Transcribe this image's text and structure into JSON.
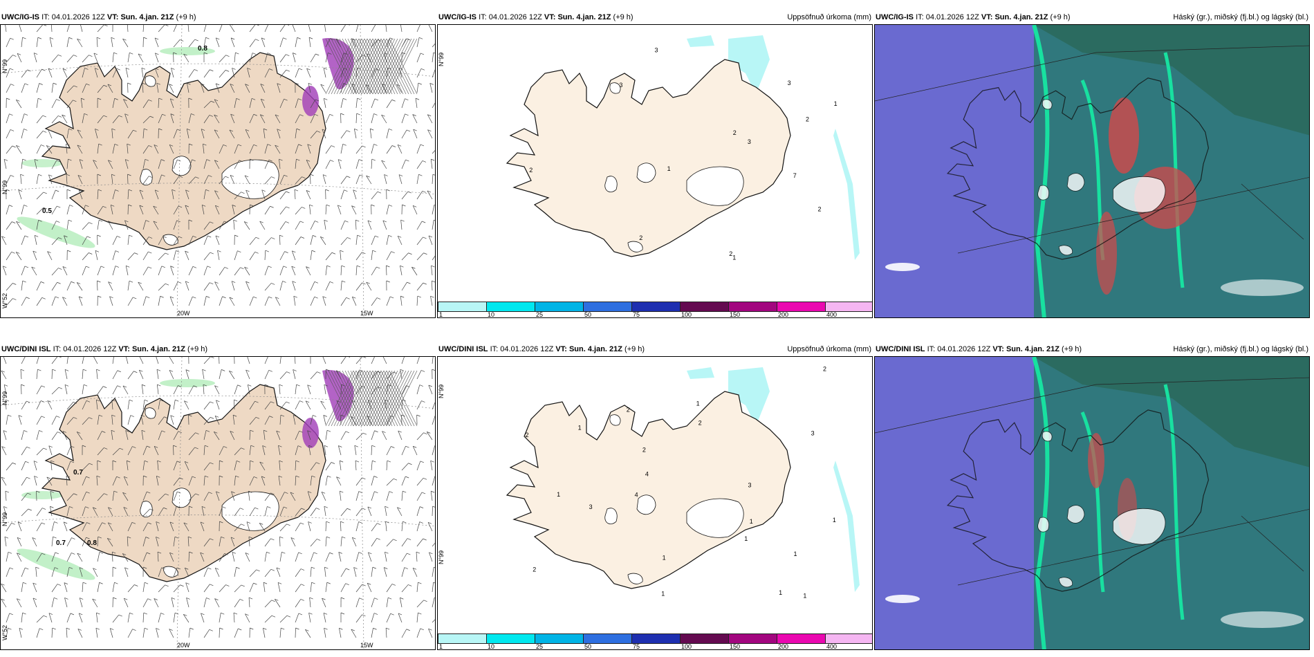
{
  "panels": [
    {
      "model": "UWC/IG-IS",
      "it_label": "IT:",
      "it_value": "04.01.2026 12Z",
      "vt_label": "VT:",
      "vt_value": "Sun. 4.jan. 21Z",
      "lead": "(+9 h)",
      "right_title": "",
      "labels": [
        "0.8",
        "0.5"
      ],
      "lon_labels": [
        "20W",
        "15W"
      ],
      "lat_labels": [
        "N°99",
        "N°99",
        "W°52"
      ]
    },
    {
      "model": "UWC/IG-IS",
      "it_label": "IT:",
      "it_value": "04.01.2026 12Z",
      "vt_label": "VT:",
      "vt_value": "Sun. 4.jan. 21Z",
      "lead": "(+9 h)",
      "right_title": "Uppsöfnuð úrkoma (mm)",
      "labels": [
        "2",
        "7",
        "3",
        "2",
        "3",
        "2",
        "1",
        "2",
        "1",
        "2",
        "3",
        "2",
        "3",
        "1"
      ],
      "lat_labels": [
        "N°99"
      ]
    },
    {
      "model": "UWC/IG-IS",
      "it_label": "IT:",
      "it_value": "04.01.2026 12Z",
      "vt_label": "VT:",
      "vt_value": "Sun. 4.jan. 21Z",
      "lead": "(+9 h)",
      "right_title": "Háský (gr.), miðský (fj.bl.) og lágský (bl.)"
    },
    {
      "model": "UWC/DINI ISL",
      "it_label": "IT:",
      "it_value": "04.01.2026 12Z",
      "vt_label": "VT:",
      "vt_value": "Sun. 4.jan. 21Z",
      "lead": "(+9 h)",
      "right_title": "",
      "labels": [
        "0.7",
        "0.7",
        "0.8"
      ],
      "lon_labels": [
        "20W",
        "15W"
      ],
      "lat_labels": [
        "N°99",
        "N°99",
        "W°52"
      ]
    },
    {
      "model": "UWC/DINI ISL",
      "it_label": "IT:",
      "it_value": "04.01.2026 12Z",
      "vt_label": "VT:",
      "vt_value": "Sun. 4.jan. 21Z",
      "lead": "(+9 h)",
      "right_title": "Uppsöfnuð úrkoma (mm)",
      "labels": [
        "2",
        "1",
        "1",
        "1",
        "3",
        "4",
        "3",
        "4",
        "1",
        "1",
        "2",
        "2",
        "1",
        "2",
        "1",
        "1",
        "1",
        "2",
        "1",
        "3",
        "1",
        "2"
      ],
      "lat_labels": [
        "N°99",
        "N°99"
      ]
    },
    {
      "model": "UWC/DINI ISL",
      "it_label": "IT:",
      "it_value": "04.01.2026 12Z",
      "vt_label": "VT:",
      "vt_value": "Sun. 4.jan. 21Z",
      "lead": "(+9 h)",
      "right_title": "Háský (gr.), miðský (fj.bl.) og lágský (bl.)"
    }
  ],
  "colorbar": {
    "ticks": [
      "1",
      "10",
      "25",
      "50",
      "75",
      "100",
      "150",
      "200",
      "400"
    ],
    "colors": [
      "#b8f6f6",
      "#00e8ef",
      "#00b4e6",
      "#2e6fe0",
      "#1e2fb0",
      "#640a50",
      "#a2067f",
      "#ea08b0",
      "#f5b6f2"
    ]
  },
  "colors": {
    "land": "#eed9c4",
    "land_precip": "#fbf0e2",
    "coast": "#111111",
    "rain_green": "#8fe39a",
    "snow_purple": "#a03cb8",
    "cloud_low": "#6a6ad0",
    "cloud_mid": "#2a7a73",
    "cloud_high": "#18e0a0",
    "cloud_red": "#d3484a"
  }
}
